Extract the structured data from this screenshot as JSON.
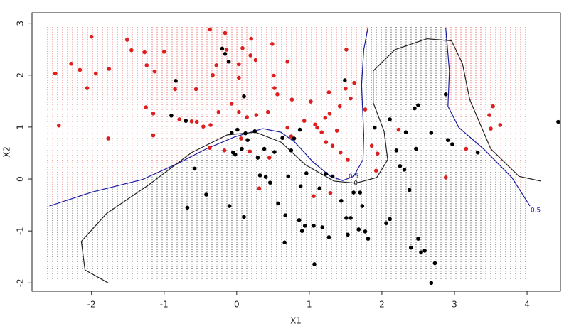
{
  "chart_data": {
    "type": "scatter",
    "x_label": "X1",
    "y_label": "X2",
    "xlim": [
      -2.82,
      4.46
    ],
    "ylim": [
      -2.16,
      3.2
    ],
    "xticks": [
      -2,
      -1,
      0,
      1,
      2,
      3,
      4
    ],
    "yticks": [
      -2,
      -1,
      0,
      1,
      2,
      3
    ],
    "series": [
      {
        "color": "#dd1f1f",
        "x": [
          -2.5,
          -2.45,
          -2.28,
          -2.16,
          -2.06,
          -2.0,
          -1.94,
          -1.77,
          -1.76,
          -1.51,
          -1.45,
          -1.27,
          -1.24,
          -1.13,
          -1.25,
          -1.15,
          -1.15,
          -1.0,
          -0.85,
          -0.79,
          -0.62,
          -0.56,
          -0.55,
          -0.46,
          -0.37,
          -0.36,
          -0.33,
          -0.28,
          -0.25,
          -0.16,
          -0.14,
          -0.07,
          0.03,
          0.03,
          0.03,
          0.08,
          0.14,
          0.19,
          0.2,
          0.26,
          0.27,
          0.43,
          0.49,
          0.51,
          0.52,
          0.56,
          0.7,
          0.7,
          0.75,
          0.76,
          0.93,
          1.02,
          1.08,
          1.11,
          1.17,
          1.22,
          1.23,
          1.27,
          1.28,
          1.32,
          1.38,
          1.42,
          1.43,
          1.5,
          1.51,
          1.53,
          1.57,
          1.62,
          1.77,
          1.86,
          1.94,
          1.92,
          1.06,
          1.29,
          0.31,
          0.18,
          0.45,
          -0.37,
          -0.17,
          0.06,
          2.23,
          3.16,
          2.88,
          3.48,
          3.53,
          3.5,
          3.63
        ],
        "y": [
          2.03,
          1.03,
          2.22,
          2.1,
          1.75,
          2.74,
          2.03,
          0.78,
          2.12,
          2.68,
          2.48,
          2.44,
          2.19,
          2.07,
          1.38,
          1.26,
          0.84,
          2.45,
          1.73,
          1.15,
          1.11,
          1.73,
          1.1,
          1.01,
          2.88,
          1.04,
          2.0,
          2.19,
          1.29,
          2.81,
          2.49,
          1.45,
          2.21,
          1.95,
          1.29,
          2.52,
          1.19,
          2.38,
          2.7,
          2.29,
          1.23,
          1.29,
          2.6,
          1.99,
          1.75,
          1.63,
          2.26,
          0.99,
          0.82,
          1.53,
          1.12,
          1.49,
          1.05,
          0.99,
          0.9,
          1.18,
          0.71,
          1.67,
          1.26,
          0.64,
          0.93,
          1.4,
          0.51,
          1.74,
          2.49,
          0.37,
          1.55,
          1.85,
          1.34,
          0.64,
          0.49,
          0.16,
          -0.33,
          -0.27,
          -0.18,
          0.53,
          0.41,
          0.6,
          0.55,
          0.78,
          0.95,
          0.58,
          0.03,
          1.23,
          1.4,
          0.97,
          1.04
        ]
      },
      {
        "color": "#000000",
        "x": [
          -0.84,
          -0.9,
          -0.7,
          -0.68,
          -0.58,
          -0.42,
          -0.2,
          -0.16,
          -0.11,
          -0.05,
          -0.07,
          -0.02,
          -0.1,
          0.1,
          0.12,
          0.15,
          0.07,
          0.1,
          0.25,
          0.29,
          0.32,
          0.38,
          0.4,
          0.46,
          0.52,
          0.63,
          0.71,
          0.75,
          0.79,
          0.87,
          0.88,
          0.57,
          0.67,
          0.66,
          0.86,
          0.9,
          0.96,
          0.94,
          1.06,
          1.07,
          1.18,
          1.23,
          1.14,
          1.32,
          1.27,
          1.44,
          1.49,
          1.51,
          1.57,
          1.53,
          1.61,
          1.68,
          1.7,
          1.73,
          1.77,
          1.81,
          1.9,
          2.11,
          2.06,
          2.11,
          2.2,
          2.25,
          2.31,
          2.33,
          2.38,
          2.4,
          2.45,
          2.5,
          2.47,
          2.5,
          2.54,
          2.59,
          2.68,
          2.68,
          2.73,
          2.88,
          2.91,
          2.97,
          3.32,
          4.43,
          0.01
        ],
        "y": [
          1.89,
          1.22,
          1.12,
          -0.55,
          0.2,
          -0.3,
          2.51,
          2.41,
          2.26,
          0.51,
          0.89,
          0.47,
          -0.52,
          1.59,
          0.88,
          0.75,
          0.58,
          -0.73,
          0.92,
          0.41,
          0.07,
          0.58,
          0.04,
          -0.07,
          0.52,
          0.79,
          0.05,
          0.55,
          0.78,
          0.95,
          -0.14,
          -0.47,
          -0.7,
          -1.22,
          -0.79,
          -1.0,
          0.11,
          -0.9,
          -0.9,
          -1.64,
          -0.93,
          0.1,
          -0.18,
          0.05,
          -1.12,
          -0.42,
          1.9,
          -0.75,
          -0.75,
          -1.07,
          -0.26,
          -0.97,
          -0.26,
          -0.52,
          -1.01,
          -1.15,
          0.99,
          1.15,
          -0.85,
          -0.77,
          0.55,
          0.25,
          0.18,
          0.9,
          -0.21,
          -1.32,
          1.36,
          1.42,
          0.58,
          -1.15,
          -1.41,
          -1.38,
          0.89,
          -2.0,
          -1.62,
          1.63,
          0.75,
          0.67,
          0.51,
          1.1,
          0.95
        ]
      }
    ],
    "contours": [
      {
        "color": "#1a1aa0",
        "label": "0.5",
        "x": [
          -2.58,
          -1.99,
          -1.3,
          -0.81,
          -0.42,
          -0.03,
          0.36,
          0.61,
          0.8,
          1.05,
          1.29,
          1.46,
          1.61,
          1.74,
          1.75,
          1.72,
          1.75,
          1.81
        ],
        "y": [
          -0.52,
          -0.25,
          -0.01,
          0.3,
          0.58,
          0.81,
          0.97,
          0.9,
          0.71,
          0.33,
          0.05,
          -0.03,
          0.05,
          0.37,
          0.85,
          1.81,
          2.49,
          2.93
        ]
      },
      {
        "color": "#1a1aa0",
        "label": "0.5",
        "x": [
          2.88,
          2.93,
          2.91,
          3.06,
          3.4,
          3.79,
          4.04
        ],
        "y": [
          2.9,
          2.08,
          1.4,
          0.99,
          0.58,
          0.03,
          -0.52
        ]
      },
      {
        "color": "#222222",
        "label": "0",
        "x": [
          -1.77,
          -2.09,
          -2.14,
          -1.79,
          -1.21,
          -0.62,
          -0.13,
          0.26,
          0.61,
          0.95,
          1.34,
          1.64,
          1.93,
          2.08,
          2.03,
          1.88,
          1.88,
          2.18,
          2.62,
          2.96,
          3.11,
          3.21,
          3.5,
          3.89,
          4.19
        ],
        "y": [
          -2.0,
          -1.75,
          -1.2,
          -0.66,
          -0.11,
          0.51,
          0.85,
          0.9,
          0.71,
          0.27,
          -0.04,
          -0.08,
          0.03,
          0.37,
          0.92,
          1.47,
          2.08,
          2.49,
          2.7,
          2.66,
          2.22,
          1.53,
          0.58,
          0.05,
          -0.04
        ]
      }
    ]
  }
}
